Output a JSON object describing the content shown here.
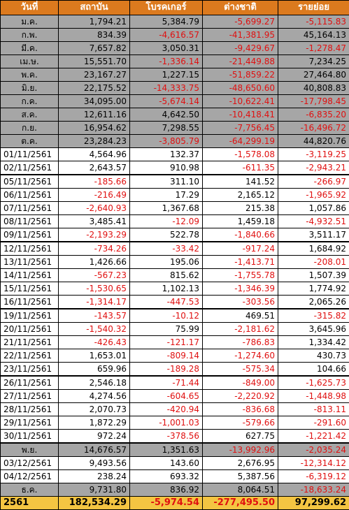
{
  "headers": [
    "วันที่",
    "สถาบัน",
    "โบรคเกอร์",
    "ต่างชาติ",
    "รายย่อย"
  ],
  "rows": [
    {
      "type": "month",
      "group": false,
      "cells": [
        "ม.ค.",
        "1,794.21",
        "5,384.79",
        "-5,699.27",
        "-5,115.83"
      ]
    },
    {
      "type": "month",
      "group": false,
      "cells": [
        "ก.พ.",
        "834.39",
        "-4,616.57",
        "-41,381.95",
        "45,164.13"
      ]
    },
    {
      "type": "month",
      "group": false,
      "cells": [
        "มี.ค.",
        "7,657.82",
        "3,050.31",
        "-9,429.67",
        "-1,278.47"
      ]
    },
    {
      "type": "month",
      "group": false,
      "cells": [
        "เม.ษ.",
        "15,551.70",
        "-1,336.14",
        "-21,449.88",
        "7,234.25"
      ]
    },
    {
      "type": "month",
      "group": false,
      "cells": [
        "พ.ค.",
        "23,167.27",
        "1,227.15",
        "-51,859.22",
        "27,464.80"
      ]
    },
    {
      "type": "month",
      "group": false,
      "cells": [
        "มิ.ย.",
        "22,175.52",
        "-14,333.75",
        "-48,650.60",
        "40,808.83"
      ]
    },
    {
      "type": "month",
      "group": false,
      "cells": [
        "ก.ค.",
        "34,095.00",
        "-5,674.14",
        "-10,622.41",
        "-17,798.45"
      ]
    },
    {
      "type": "month",
      "group": false,
      "cells": [
        "ส.ค.",
        "12,611.16",
        "4,642.50",
        "-10,418.41",
        "-6,835.20"
      ]
    },
    {
      "type": "month",
      "group": false,
      "cells": [
        "ก.ย.",
        "16,954.62",
        "7,298.55",
        "-7,756.45",
        "-16,496.72"
      ]
    },
    {
      "type": "month",
      "group": false,
      "cells": [
        "ต.ค.",
        "23,284.23",
        "-3,805.79",
        "-64,299.19",
        "44,820.76"
      ]
    },
    {
      "type": "day",
      "group": false,
      "cells": [
        "01/11/2561",
        "4,564.96",
        "132.37",
        "-1,578.08",
        "-3,119.25"
      ]
    },
    {
      "type": "day",
      "group": false,
      "cells": [
        "02/11/2561",
        "2,643.57",
        "910.98",
        "-611.35",
        "-2,943.21"
      ]
    },
    {
      "type": "day",
      "group": true,
      "cells": [
        "05/11/2561",
        "-185.66",
        "311.10",
        "141.52",
        "-266.97"
      ]
    },
    {
      "type": "day",
      "group": false,
      "cells": [
        "06/11/2561",
        "-216.49",
        "17.29",
        "2,165.12",
        "-1,965.92"
      ]
    },
    {
      "type": "day",
      "group": false,
      "cells": [
        "07/11/2561",
        "-2,640.93",
        "1,367.68",
        "215.38",
        "1,057.86"
      ]
    },
    {
      "type": "day",
      "group": false,
      "cells": [
        "08/11/2561",
        "3,485.41",
        "-12.09",
        "1,459.18",
        "-4,932.51"
      ]
    },
    {
      "type": "day",
      "group": false,
      "cells": [
        "09/11/2561",
        "-2,193.29",
        "522.78",
        "-1,840.66",
        "3,511.17"
      ]
    },
    {
      "type": "day",
      "group": true,
      "cells": [
        "12/11/2561",
        "-734.26",
        "-33.42",
        "-917.24",
        "1,684.92"
      ]
    },
    {
      "type": "day",
      "group": false,
      "cells": [
        "13/11/2561",
        "1,426.66",
        "195.06",
        "-1,413.71",
        "-208.01"
      ]
    },
    {
      "type": "day",
      "group": false,
      "cells": [
        "14/11/2561",
        "-567.23",
        "815.62",
        "-1,755.78",
        "1,507.39"
      ]
    },
    {
      "type": "day",
      "group": false,
      "cells": [
        "15/11/2561",
        "-1,530.65",
        "1,102.13",
        "-1,346.39",
        "1,774.92"
      ]
    },
    {
      "type": "day",
      "group": false,
      "cells": [
        "16/11/2561",
        "-1,314.17",
        "-447.53",
        "-303.56",
        "2,065.26"
      ]
    },
    {
      "type": "day",
      "group": true,
      "cells": [
        "19/11/2561",
        "-143.57",
        "-10.12",
        "469.51",
        "-315.82"
      ]
    },
    {
      "type": "day",
      "group": false,
      "cells": [
        "20/11/2561",
        "-1,540.32",
        "75.99",
        "-2,181.62",
        "3,645.96"
      ]
    },
    {
      "type": "day",
      "group": false,
      "cells": [
        "21/11/2561",
        "-426.43",
        "-121.17",
        "-786.83",
        "1,334.42"
      ]
    },
    {
      "type": "day",
      "group": false,
      "cells": [
        "22/11/2561",
        "1,653.01",
        "-809.14",
        "-1,274.60",
        "430.73"
      ]
    },
    {
      "type": "day",
      "group": false,
      "cells": [
        "23/11/2561",
        "659.96",
        "-189.28",
        "-575.34",
        "104.66"
      ]
    },
    {
      "type": "day",
      "group": true,
      "cells": [
        "26/11/2561",
        "2,546.18",
        "-71.44",
        "-849.00",
        "-1,625.73"
      ]
    },
    {
      "type": "day",
      "group": false,
      "cells": [
        "27/11/2561",
        "4,274.56",
        "-604.65",
        "-2,220.92",
        "-1,448.98"
      ]
    },
    {
      "type": "day",
      "group": false,
      "cells": [
        "28/11/2561",
        "2,070.73",
        "-420.94",
        "-836.68",
        "-813.11"
      ]
    },
    {
      "type": "day",
      "group": false,
      "cells": [
        "29/11/2561",
        "1,872.29",
        "-1,001.03",
        "-579.66",
        "-291.60"
      ]
    },
    {
      "type": "day",
      "group": false,
      "cells": [
        "30/11/2561",
        "972.24",
        "-378.56",
        "627.75",
        "-1,221.42"
      ]
    },
    {
      "type": "month",
      "group": true,
      "cells": [
        "พ.ย.",
        "14,676.57",
        "1,351.63",
        "-13,992.96",
        "-2,035.24"
      ]
    },
    {
      "type": "day",
      "group": false,
      "cells": [
        "03/12/2561",
        "9,493.56",
        "143.60",
        "2,676.95",
        "-12,314.12"
      ]
    },
    {
      "type": "day",
      "group": false,
      "cells": [
        "04/12/2561",
        "238.24",
        "693.32",
        "5,387.56",
        "-6,319.12"
      ]
    },
    {
      "type": "month",
      "group": false,
      "cells": [
        "ธ.ค.",
        "9,731.80",
        "836.92",
        "8,064.51",
        "-18,633.24"
      ]
    },
    {
      "type": "total",
      "group": false,
      "cells": [
        "2561",
        "182,534.29",
        "-5,974.54",
        "-277,495.50",
        "97,299.62"
      ]
    }
  ]
}
